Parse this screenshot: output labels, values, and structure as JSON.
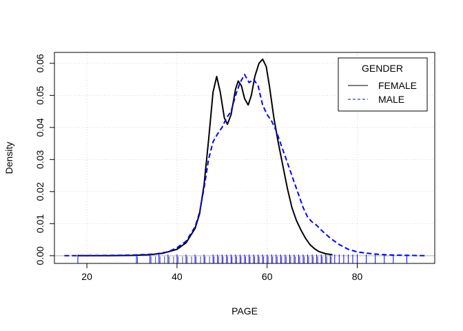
{
  "chart_data": {
    "type": "line",
    "title": "",
    "xlabel": "PAGE",
    "ylabel": "Density",
    "xlim": [
      12.8,
      97.2
    ],
    "ylim": [
      -0.0024,
      0.0634
    ],
    "xticks": [
      20,
      40,
      60,
      80
    ],
    "yticks": [
      0.0,
      0.01,
      0.02,
      0.03,
      0.04,
      0.05,
      0.06
    ],
    "ytick_labels": [
      "0.00",
      "0.01",
      "0.02",
      "0.03",
      "0.04",
      "0.05",
      "0.06"
    ],
    "grid": true,
    "legend": {
      "title": "GENDER",
      "position": "top-right"
    },
    "series": [
      {
        "name": "FEMALE",
        "color": "#000000",
        "dash": "solid",
        "points": [
          [
            18,
            0
          ],
          [
            25,
            0
          ],
          [
            30,
            0.0001
          ],
          [
            34,
            0.0003
          ],
          [
            37,
            0.0008
          ],
          [
            40,
            0.002
          ],
          [
            42,
            0.004
          ],
          [
            44,
            0.0085
          ],
          [
            45,
            0.013
          ],
          [
            46,
            0.022
          ],
          [
            47,
            0.036
          ],
          [
            48,
            0.051
          ],
          [
            48.8,
            0.0559
          ],
          [
            49.6,
            0.051
          ],
          [
            50.5,
            0.043
          ],
          [
            51.2,
            0.041
          ],
          [
            52,
            0.044
          ],
          [
            53,
            0.052
          ],
          [
            53.6,
            0.0545
          ],
          [
            54.3,
            0.053
          ],
          [
            55,
            0.049
          ],
          [
            55.8,
            0.047
          ],
          [
            56.5,
            0.05
          ],
          [
            57.3,
            0.056
          ],
          [
            58.2,
            0.06
          ],
          [
            59,
            0.0613
          ],
          [
            59.8,
            0.059
          ],
          [
            60.5,
            0.053
          ],
          [
            61.5,
            0.043
          ],
          [
            62.5,
            0.035
          ],
          [
            63.5,
            0.028
          ],
          [
            64.5,
            0.021
          ],
          [
            65.5,
            0.015
          ],
          [
            66.5,
            0.011
          ],
          [
            67.5,
            0.008
          ],
          [
            68.5,
            0.0055
          ],
          [
            69.5,
            0.0035
          ],
          [
            70.5,
            0.0022
          ],
          [
            71.5,
            0.0013
          ],
          [
            73,
            0.0006
          ],
          [
            74.5,
            0.0003
          ]
        ]
      },
      {
        "name": "MALE",
        "color": "#0000ff",
        "dash": "dashed",
        "points": [
          [
            15,
            0
          ],
          [
            25,
            0.0001
          ],
          [
            30,
            0.0002
          ],
          [
            35,
            0.0005
          ],
          [
            38,
            0.0012
          ],
          [
            40,
            0.0025
          ],
          [
            42,
            0.0045
          ],
          [
            44,
            0.009
          ],
          [
            45,
            0.0135
          ],
          [
            46,
            0.021
          ],
          [
            47,
            0.03
          ],
          [
            48,
            0.0355
          ],
          [
            49,
            0.038
          ],
          [
            50,
            0.04
          ],
          [
            51,
            0.043
          ],
          [
            52,
            0.045
          ],
          [
            53,
            0.05
          ],
          [
            54,
            0.054
          ],
          [
            55,
            0.0565
          ],
          [
            56,
            0.054
          ],
          [
            57,
            0.055
          ],
          [
            58,
            0.053
          ],
          [
            59,
            0.047
          ],
          [
            60,
            0.044
          ],
          [
            61,
            0.042
          ],
          [
            62,
            0.039
          ],
          [
            63,
            0.035
          ],
          [
            64,
            0.031
          ],
          [
            65,
            0.027
          ],
          [
            66,
            0.023
          ],
          [
            67,
            0.019
          ],
          [
            68,
            0.015
          ],
          [
            69,
            0.012
          ],
          [
            70,
            0.0105
          ],
          [
            71,
            0.0095
          ],
          [
            72,
            0.008
          ],
          [
            74,
            0.0055
          ],
          [
            76,
            0.0035
          ],
          [
            78,
            0.002
          ],
          [
            80,
            0.0012
          ],
          [
            82,
            0.0008
          ],
          [
            85,
            0.0004
          ],
          [
            88,
            0.0002
          ],
          [
            92,
            0.0001
          ],
          [
            95,
            0
          ]
        ]
      }
    ],
    "rug": {
      "FEMALE": [
        31,
        34,
        35,
        36,
        37,
        38,
        39,
        40,
        41,
        42,
        43,
        44,
        45,
        46,
        47,
        48,
        49,
        50,
        51,
        52,
        53,
        54,
        55,
        56,
        57,
        58,
        59,
        60,
        61,
        62,
        63,
        64,
        65,
        66,
        67,
        68,
        69,
        70,
        71,
        72,
        73,
        74
      ],
      "MALE": [
        18,
        31,
        34,
        36,
        38,
        40,
        42,
        44,
        46,
        48,
        49,
        50,
        51,
        52,
        53,
        54,
        55,
        56,
        57,
        58,
        59,
        60,
        61,
        62,
        63,
        64,
        65,
        66,
        67,
        68,
        69,
        70,
        71,
        72,
        73,
        74,
        75,
        76,
        77,
        78,
        79,
        80,
        82,
        84,
        86,
        88,
        91
      ]
    }
  }
}
